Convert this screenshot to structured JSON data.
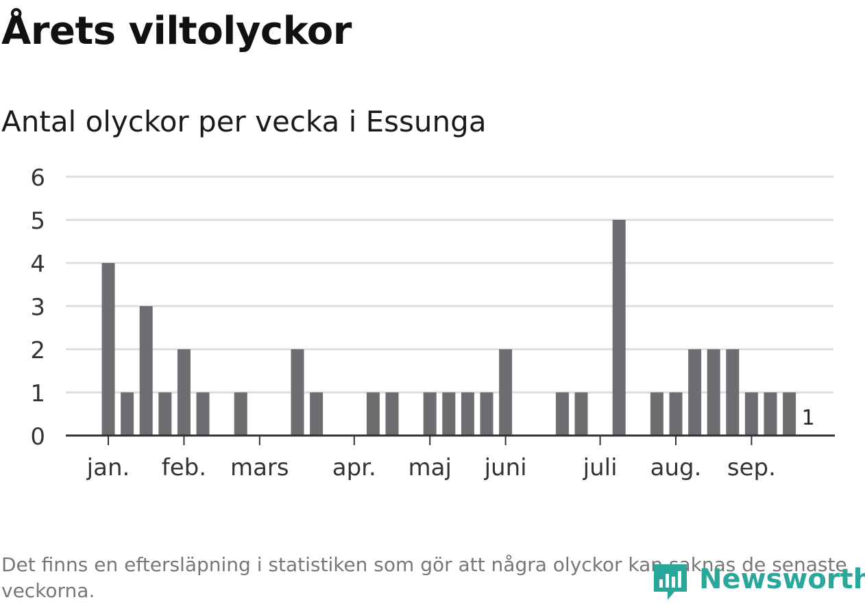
{
  "title": "Årets viltolyckor",
  "subtitle": "Antal olyckor per vecka i Essunga",
  "note": "Det finns en eftersläpning i statistiken som gör att några olyckor kan saknas de senaste veckorna.",
  "logo": {
    "text": "Newsworthy",
    "color": "#2aa79b"
  },
  "colors": {
    "bar": "#6e6d72",
    "highlight": "#00a59a",
    "grid": "#dddddd",
    "axis": "#333333",
    "text": "#333333"
  },
  "chart_data": {
    "type": "bar",
    "title": "Årets viltolyckor",
    "subtitle": "Antal olyckor per vecka i Essunga",
    "xlabel": "",
    "ylabel": "",
    "ylim": [
      0,
      6
    ],
    "yticks": [
      0,
      1,
      2,
      3,
      4,
      5,
      6
    ],
    "grid": true,
    "weeks": [
      1,
      2,
      3,
      4,
      5,
      6,
      7,
      8,
      9,
      10,
      11,
      12,
      13,
      14,
      15,
      16,
      17,
      18,
      19,
      20,
      21,
      22,
      23,
      24,
      25,
      26,
      27,
      28,
      29,
      30,
      31,
      32,
      33,
      34,
      35,
      36,
      37,
      38,
      39
    ],
    "values": [
      4,
      1,
      3,
      1,
      2,
      1,
      0,
      1,
      0,
      0,
      2,
      1,
      0,
      0,
      1,
      1,
      0,
      1,
      1,
      1,
      1,
      2,
      0,
      0,
      1,
      1,
      0,
      5,
      0,
      1,
      1,
      2,
      2,
      2,
      1,
      1,
      1,
      0,
      0
    ],
    "highlight_index": 37,
    "highlight_label": "1",
    "month_labels": [
      {
        "label": "jan.",
        "week": 1.0
      },
      {
        "label": "feb.",
        "week": 5.0
      },
      {
        "label": "mars",
        "week": 9.0
      },
      {
        "label": "apr.",
        "week": 14.0
      },
      {
        "label": "maj",
        "week": 18.0
      },
      {
        "label": "juni",
        "week": 22.0
      },
      {
        "label": "juli",
        "week": 27.0
      },
      {
        "label": "aug.",
        "week": 31.0
      },
      {
        "label": "sep.",
        "week": 35.0
      }
    ]
  }
}
